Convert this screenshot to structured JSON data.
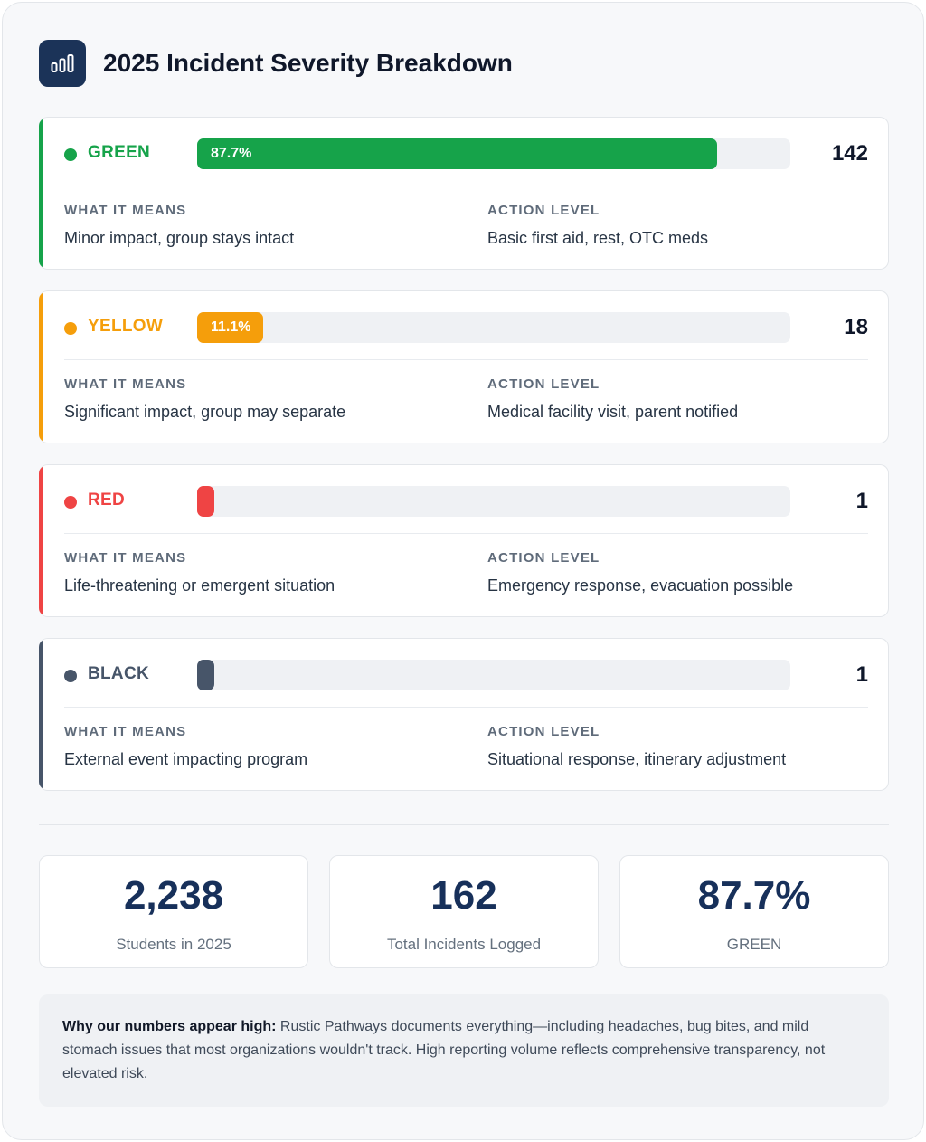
{
  "header": {
    "title": "2025 Incident Severity Breakdown",
    "icon": "bar-chart-icon"
  },
  "labels": {
    "what_it_means": "WHAT IT MEANS",
    "action_level": "ACTION LEVEL"
  },
  "chart_data": {
    "type": "bar",
    "title": "2025 Incident Severity Breakdown",
    "orientation": "horizontal",
    "categories": [
      "GREEN",
      "YELLOW",
      "RED",
      "BLACK"
    ],
    "values": [
      142,
      18,
      1,
      1
    ],
    "percent_labels": [
      "87.7%",
      "11.1%",
      "",
      ""
    ],
    "percent_values": [
      87.7,
      11.1,
      0.6,
      0.6
    ],
    "colors": [
      "#16a34a",
      "#f59e0b",
      "#ef4444",
      "#475569"
    ]
  },
  "severities": [
    {
      "name": "GREEN",
      "count": "142",
      "percent_label": "87.7%",
      "fraction": 0.877,
      "color": "#16a34a",
      "means": "Minor impact, group stays intact",
      "action": "Basic first aid, rest, OTC meds"
    },
    {
      "name": "YELLOW",
      "count": "18",
      "percent_label": "11.1%",
      "fraction": 0.111,
      "color": "#f59e0b",
      "means": "Significant impact, group may separate",
      "action": "Medical facility visit, parent notified"
    },
    {
      "name": "RED",
      "count": "1",
      "percent_label": "",
      "fraction": 0.006,
      "color": "#ef4444",
      "means": "Life-threatening or emergent situation",
      "action": "Emergency response, evacuation possible"
    },
    {
      "name": "BLACK",
      "count": "1",
      "percent_label": "",
      "fraction": 0.006,
      "color": "#475569",
      "means": "External event impacting program",
      "action": "Situational response, itinerary adjustment"
    }
  ],
  "stats": [
    {
      "value": "2,238",
      "label": "Students in 2025"
    },
    {
      "value": "162",
      "label": "Total Incidents Logged"
    },
    {
      "value": "87.7%",
      "label": "GREEN"
    }
  ],
  "note": {
    "lead": "Why our numbers appear high:",
    "body": " Rustic Pathways documents everything—including headaches, bug bites, and mild stomach issues that most organizations wouldn't track. High reporting volume reflects comprehensive transparency, not elevated risk."
  },
  "colors": {
    "navy": "#1b3358",
    "stat_value": "#17305a"
  }
}
